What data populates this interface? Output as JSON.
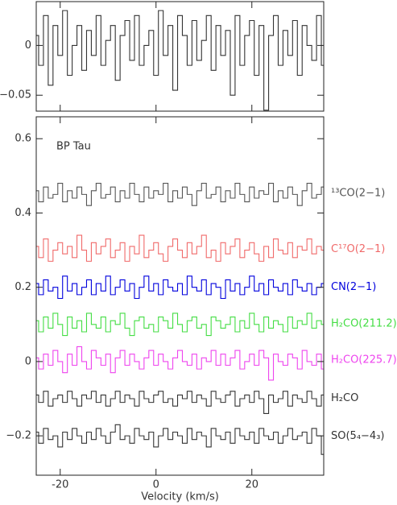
{
  "chart_data": [
    {
      "type": "line",
      "step": true,
      "x": [
        -25,
        -24,
        -23,
        -22,
        -21,
        -20,
        -19,
        -18,
        -17,
        -16,
        -15,
        -14,
        -13,
        -12,
        -11,
        -10,
        -9,
        -8,
        -7,
        -6,
        -5,
        -4,
        -3,
        -2,
        -1,
        0,
        1,
        2,
        3,
        4,
        5,
        6,
        7,
        8,
        9,
        10,
        11,
        12,
        13,
        14,
        15,
        16,
        17,
        18,
        19,
        20,
        21,
        22,
        23,
        24,
        25,
        26,
        27,
        28,
        29,
        30,
        31,
        32,
        33,
        34,
        35
      ],
      "xlim": [
        -25,
        35
      ],
      "xticks": [
        -20,
        0,
        20
      ],
      "ylim": [
        -0.066,
        0.044
      ],
      "yticks": [
        {
          "value": -0.05,
          "label": "−0.05"
        },
        0
      ],
      "series": [
        {
          "color": "#333333",
          "values": [
            0.01,
            -0.02,
            0.03,
            -0.04,
            0.02,
            -0.01,
            0.035,
            -0.03,
            0.0,
            0.02,
            -0.025,
            0.015,
            -0.01,
            0.03,
            -0.02,
            0.005,
            0.02,
            -0.035,
            0.01,
            0.025,
            -0.015,
            0.03,
            -0.02,
            0.0,
            0.015,
            -0.03,
            0.035,
            -0.01,
            0.02,
            -0.045,
            0.03,
            0.01,
            -0.02,
            0.025,
            -0.015,
            0.005,
            0.03,
            -0.025,
            0.02,
            -0.01,
            0.015,
            -0.05,
            0.03,
            -0.02,
            0.01,
            0.025,
            -0.03,
            0.02,
            -0.065,
            0.01,
            0.03,
            -0.02,
            0.015,
            -0.01,
            0.025,
            -0.03,
            0.02,
            0.0,
            -0.015,
            0.03,
            -0.02
          ]
        }
      ]
    },
    {
      "type": "line",
      "step": true,
      "x": [
        -25,
        -24,
        -23,
        -22,
        -21,
        -20,
        -19,
        -18,
        -17,
        -16,
        -15,
        -14,
        -13,
        -12,
        -11,
        -10,
        -9,
        -8,
        -7,
        -6,
        -5,
        -4,
        -3,
        -2,
        -1,
        0,
        1,
        2,
        3,
        4,
        5,
        6,
        7,
        8,
        9,
        10,
        11,
        12,
        13,
        14,
        15,
        16,
        17,
        18,
        19,
        20,
        21,
        22,
        23,
        24,
        25,
        26,
        27,
        28,
        29,
        30,
        31,
        32,
        33,
        34,
        35
      ],
      "xlim": [
        -25,
        35
      ],
      "xticks": [
        -20,
        0,
        20
      ],
      "xlabel": "Velocity (km/s)",
      "ylim": [
        -0.306,
        0.659
      ],
      "yticks": [
        {
          "value": -0.2,
          "label": "−0.2"
        },
        0,
        0.2,
        0.4,
        0.6
      ],
      "annotation": "BP Tau",
      "series": [
        {
          "name": "¹³CO(2−1)",
          "color": "#555555",
          "values": [
            0.46,
            0.43,
            0.47,
            0.44,
            0.45,
            0.48,
            0.43,
            0.46,
            0.44,
            0.47,
            0.45,
            0.42,
            0.46,
            0.48,
            0.44,
            0.45,
            0.47,
            0.43,
            0.46,
            0.44,
            0.48,
            0.45,
            0.43,
            0.47,
            0.44,
            0.46,
            0.45,
            0.48,
            0.43,
            0.46,
            0.44,
            0.47,
            0.45,
            0.42,
            0.46,
            0.48,
            0.44,
            0.45,
            0.47,
            0.43,
            0.46,
            0.44,
            0.48,
            0.45,
            0.43,
            0.47,
            0.44,
            0.46,
            0.45,
            0.48,
            0.43,
            0.46,
            0.44,
            0.47,
            0.45,
            0.42,
            0.46,
            0.48,
            0.44,
            0.45,
            0.47
          ]
        },
        {
          "name": "C¹⁷O(2−1)",
          "color": "#f06a6a",
          "values": [
            0.31,
            0.28,
            0.33,
            0.27,
            0.3,
            0.32,
            0.29,
            0.31,
            0.28,
            0.34,
            0.3,
            0.27,
            0.32,
            0.29,
            0.31,
            0.33,
            0.28,
            0.3,
            0.32,
            0.27,
            0.31,
            0.29,
            0.34,
            0.28,
            0.3,
            0.32,
            0.29,
            0.27,
            0.31,
            0.33,
            0.3,
            0.28,
            0.32,
            0.29,
            0.31,
            0.34,
            0.28,
            0.3,
            0.27,
            0.32,
            0.29,
            0.31,
            0.33,
            0.28,
            0.3,
            0.32,
            0.29,
            0.27,
            0.31,
            0.28,
            0.33,
            0.3,
            0.29,
            0.32,
            0.28,
            0.31,
            0.3,
            0.33,
            0.29,
            0.31,
            0.3
          ]
        },
        {
          "name": "CN(2−1)",
          "color": "#0000dd",
          "values": [
            0.21,
            0.18,
            0.22,
            0.19,
            0.2,
            0.17,
            0.23,
            0.19,
            0.21,
            0.18,
            0.2,
            0.22,
            0.18,
            0.21,
            0.19,
            0.23,
            0.18,
            0.2,
            0.22,
            0.19,
            0.21,
            0.17,
            0.2,
            0.23,
            0.19,
            0.21,
            0.18,
            0.22,
            0.2,
            0.19,
            0.21,
            0.18,
            0.23,
            0.2,
            0.19,
            0.22,
            0.18,
            0.21,
            0.2,
            0.17,
            0.22,
            0.19,
            0.21,
            0.18,
            0.2,
            0.23,
            0.19,
            0.21,
            0.18,
            0.22,
            0.2,
            0.19,
            0.21,
            0.18,
            0.22,
            0.2,
            0.19,
            0.21,
            0.18,
            0.2,
            0.21
          ]
        },
        {
          "name": "H₂CO(211.2)",
          "color": "#44dd44",
          "values": [
            0.11,
            0.08,
            0.12,
            0.09,
            0.13,
            0.1,
            0.07,
            0.12,
            0.09,
            0.11,
            0.08,
            0.13,
            0.1,
            0.09,
            0.12,
            0.08,
            0.11,
            0.1,
            0.13,
            0.09,
            0.07,
            0.11,
            0.12,
            0.09,
            0.1,
            0.08,
            0.12,
            0.11,
            0.09,
            0.13,
            0.1,
            0.08,
            0.11,
            0.12,
            0.09,
            0.1,
            0.07,
            0.12,
            0.11,
            0.09,
            0.1,
            0.12,
            0.08,
            0.11,
            0.09,
            0.13,
            0.1,
            0.08,
            0.12,
            0.09,
            0.11,
            0.1,
            0.08,
            0.12,
            0.09,
            0.11,
            0.1,
            0.13,
            0.09,
            0.11,
            0.1
          ]
        },
        {
          "name": "H₂CO(225.7)",
          "color": "#ee44ee",
          "values": [
            0.01,
            -0.02,
            0.02,
            -0.01,
            0.03,
            0.0,
            -0.03,
            0.02,
            -0.01,
            0.04,
            0.0,
            -0.02,
            0.03,
            0.01,
            -0.01,
            0.02,
            -0.03,
            0.01,
            0.03,
            -0.01,
            0.02,
            0.0,
            -0.02,
            0.01,
            0.03,
            -0.01,
            0.02,
            0.0,
            -0.02,
            0.01,
            0.03,
            0.0,
            -0.01,
            0.02,
            -0.02,
            0.01,
            0.0,
            0.03,
            -0.01,
            0.02,
            -0.01,
            0.01,
            0.03,
            -0.02,
            0.0,
            0.02,
            -0.01,
            0.03,
            0.01,
            -0.05,
            0.02,
            0.0,
            -0.01,
            0.02,
            0.01,
            -0.02,
            0.03,
            0.0,
            -0.01,
            0.02,
            -0.02
          ]
        },
        {
          "name": "H₂CO",
          "color": "#333333",
          "values": [
            -0.09,
            -0.11,
            -0.08,
            -0.12,
            -0.1,
            -0.09,
            -0.11,
            -0.08,
            -0.1,
            -0.12,
            -0.09,
            -0.1,
            -0.08,
            -0.11,
            -0.09,
            -0.12,
            -0.1,
            -0.08,
            -0.11,
            -0.09,
            -0.1,
            -0.12,
            -0.08,
            -0.1,
            -0.11,
            -0.09,
            -0.08,
            -0.11,
            -0.1,
            -0.12,
            -0.09,
            -0.1,
            -0.08,
            -0.11,
            -0.09,
            -0.1,
            -0.12,
            -0.08,
            -0.1,
            -0.11,
            -0.09,
            -0.08,
            -0.12,
            -0.1,
            -0.09,
            -0.11,
            -0.08,
            -0.1,
            -0.14,
            -0.09,
            -0.11,
            -0.1,
            -0.08,
            -0.12,
            -0.09,
            -0.1,
            -0.11,
            -0.08,
            -0.1,
            -0.12,
            -0.09
          ]
        },
        {
          "name": "SO(5₄−4₃)",
          "color": "#333333",
          "values": [
            -0.19,
            -0.22,
            -0.18,
            -0.21,
            -0.2,
            -0.23,
            -0.19,
            -0.21,
            -0.18,
            -0.2,
            -0.22,
            -0.19,
            -0.21,
            -0.18,
            -0.2,
            -0.22,
            -0.19,
            -0.17,
            -0.21,
            -0.2,
            -0.22,
            -0.18,
            -0.2,
            -0.21,
            -0.19,
            -0.23,
            -0.2,
            -0.18,
            -0.21,
            -0.19,
            -0.2,
            -0.22,
            -0.18,
            -0.21,
            -0.19,
            -0.2,
            -0.23,
            -0.18,
            -0.2,
            -0.21,
            -0.19,
            -0.22,
            -0.18,
            -0.2,
            -0.21,
            -0.19,
            -0.22,
            -0.18,
            -0.2,
            -0.21,
            -0.19,
            -0.22,
            -0.2,
            -0.18,
            -0.21,
            -0.2,
            -0.19,
            -0.22,
            -0.18,
            -0.2,
            -0.25
          ]
        }
      ]
    }
  ]
}
